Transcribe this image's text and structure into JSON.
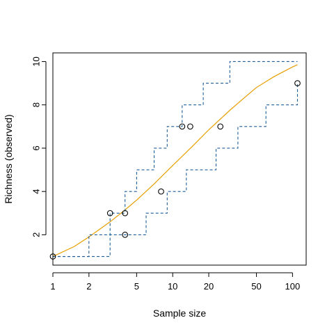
{
  "chart_data": {
    "type": "line",
    "title": "",
    "xlabel": "Sample size",
    "ylabel": "Richness (observed)",
    "x_scale": "log",
    "xlim": [
      1,
      130
    ],
    "ylim": [
      0.6,
      10.4
    ],
    "x_ticks": [
      1,
      2,
      5,
      10,
      20,
      50,
      100
    ],
    "x_tick_labels": [
      "1",
      "2",
      "5",
      "10",
      "20",
      "50",
      "100"
    ],
    "y_ticks": [
      2,
      4,
      6,
      8,
      10
    ],
    "y_tick_labels": [
      "2",
      "4",
      "6",
      "8",
      "10"
    ],
    "grid": false,
    "legend": "none",
    "colors": {
      "expected": "#E69F00",
      "bounds": "#1F5F99",
      "points": "#000000",
      "axes": "#000000"
    },
    "series": [
      {
        "role": "expected",
        "style": "solid",
        "x": [
          1,
          1.5,
          2,
          3,
          4,
          5,
          7,
          10,
          15,
          20,
          30,
          40,
          50,
          70,
          100,
          110
        ],
        "y": [
          1,
          1.45,
          1.9,
          2.6,
          3.15,
          3.6,
          4.35,
          5.2,
          6.15,
          6.85,
          7.75,
          8.35,
          8.8,
          9.3,
          9.75,
          9.85
        ]
      },
      {
        "role": "upper-bound",
        "style": "dashed-step",
        "x": [
          1,
          2,
          3,
          4,
          5,
          7,
          9,
          12,
          18,
          30,
          110
        ],
        "y": [
          1,
          2,
          3,
          4,
          5,
          6,
          7,
          8,
          9,
          10,
          10
        ]
      },
      {
        "role": "lower-bound",
        "style": "dashed-step",
        "x": [
          1,
          2,
          3,
          5,
          6,
          9,
          13,
          23,
          35,
          60,
          110
        ],
        "y": [
          1,
          1,
          2,
          2,
          3,
          4,
          5,
          6,
          7,
          8,
          9
        ]
      },
      {
        "role": "observed-points",
        "style": "open-circles",
        "x": [
          1,
          3,
          4,
          4,
          8,
          12,
          14,
          25,
          110
        ],
        "y": [
          1,
          3,
          3,
          2,
          4,
          7,
          7,
          7,
          9
        ]
      }
    ]
  }
}
